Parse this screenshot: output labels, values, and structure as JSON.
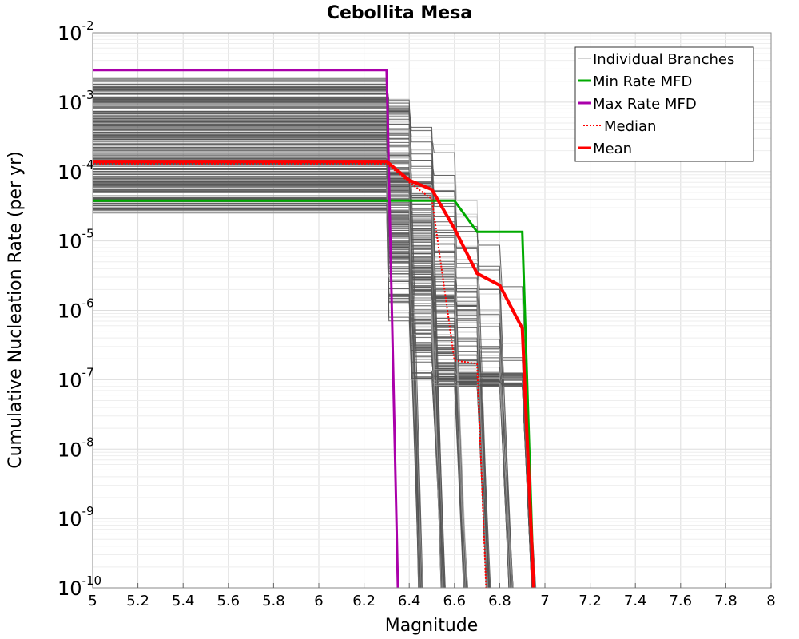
{
  "chart_data": {
    "type": "line",
    "title": "Cebollita Mesa",
    "xlabel": "Magnitude",
    "ylabel": "Cumulative Nucleation Rate (per yr)",
    "xlim": [
      5,
      8
    ],
    "ylim": [
      1e-10,
      0.01
    ],
    "y_scale": "log",
    "grid": true,
    "legend_position": "top-right",
    "x_ticks": [
      "5",
      "5.2",
      "5.4",
      "5.6",
      "5.8",
      "6",
      "6.2",
      "6.4",
      "6.6",
      "6.8",
      "7",
      "7.2",
      "7.4",
      "7.6",
      "7.8",
      "8"
    ],
    "y_ticks": [
      {
        "base": "10",
        "exp": "-10"
      },
      {
        "base": "10",
        "exp": "-9"
      },
      {
        "base": "10",
        "exp": "-8"
      },
      {
        "base": "10",
        "exp": "-7"
      },
      {
        "base": "10",
        "exp": "-6"
      },
      {
        "base": "10",
        "exp": "-5"
      },
      {
        "base": "10",
        "exp": "-4"
      },
      {
        "base": "10",
        "exp": "-3"
      },
      {
        "base": "10",
        "exp": "-2"
      }
    ],
    "individual_branches": {
      "name": "Individual Branches",
      "color": "#555555",
      "light_color": "#aaaaaa",
      "count": 300,
      "plateau_range": [
        2.5e-05,
        0.0022
      ],
      "breakpoints": [
        6.3,
        6.4,
        6.5,
        6.6,
        6.7,
        6.8,
        6.9
      ],
      "drop_magnitudes": [
        6.35,
        6.45,
        6.55,
        6.65,
        6.75,
        6.85,
        6.95
      ]
    },
    "series": [
      {
        "name": "Min Rate MFD",
        "color": "#00aa00",
        "style": "solid",
        "x": [
          5.0,
          6.3,
          6.4,
          6.5,
          6.6,
          6.7,
          6.8,
          6.9,
          6.95
        ],
        "y": [
          3.8e-05,
          3.8e-05,
          3.8e-05,
          3.8e-05,
          3.8e-05,
          1.35e-05,
          1.35e-05,
          1.35e-05,
          1e-10
        ]
      },
      {
        "name": "Max Rate MFD",
        "color": "#aa00aa",
        "style": "solid",
        "x": [
          5.0,
          6.3,
          6.35
        ],
        "y": [
          0.0029,
          0.0029,
          1e-10
        ]
      },
      {
        "name": "Median",
        "color": "#ff0000",
        "style": "dotted",
        "x": [
          5.0,
          6.3,
          6.4,
          6.5,
          6.6,
          6.7,
          6.74
        ],
        "y": [
          0.00013,
          0.00013,
          7e-05,
          4e-05,
          1.9e-07,
          1.7e-07,
          1e-10
        ]
      },
      {
        "name": "Mean",
        "color": "#ff0000",
        "style": "solid",
        "x": [
          5.0,
          6.3,
          6.4,
          6.5,
          6.6,
          6.7,
          6.8,
          6.9,
          6.95
        ],
        "y": [
          0.00014,
          0.00014,
          7.5e-05,
          5.5e-05,
          1.5e-05,
          3.4e-06,
          2.3e-06,
          5.5e-07,
          1e-10
        ]
      }
    ]
  },
  "legend": {
    "items": [
      {
        "label": "Individual Branches",
        "color": "#aaaaaa",
        "style": "solid"
      },
      {
        "label": "Min Rate MFD",
        "color": "#00aa00",
        "style": "solid"
      },
      {
        "label": "Max Rate MFD",
        "color": "#aa00aa",
        "style": "solid"
      },
      {
        "label": "Median",
        "color": "#ff0000",
        "style": "dotted"
      },
      {
        "label": "Mean",
        "color": "#ff0000",
        "style": "solid"
      }
    ]
  }
}
